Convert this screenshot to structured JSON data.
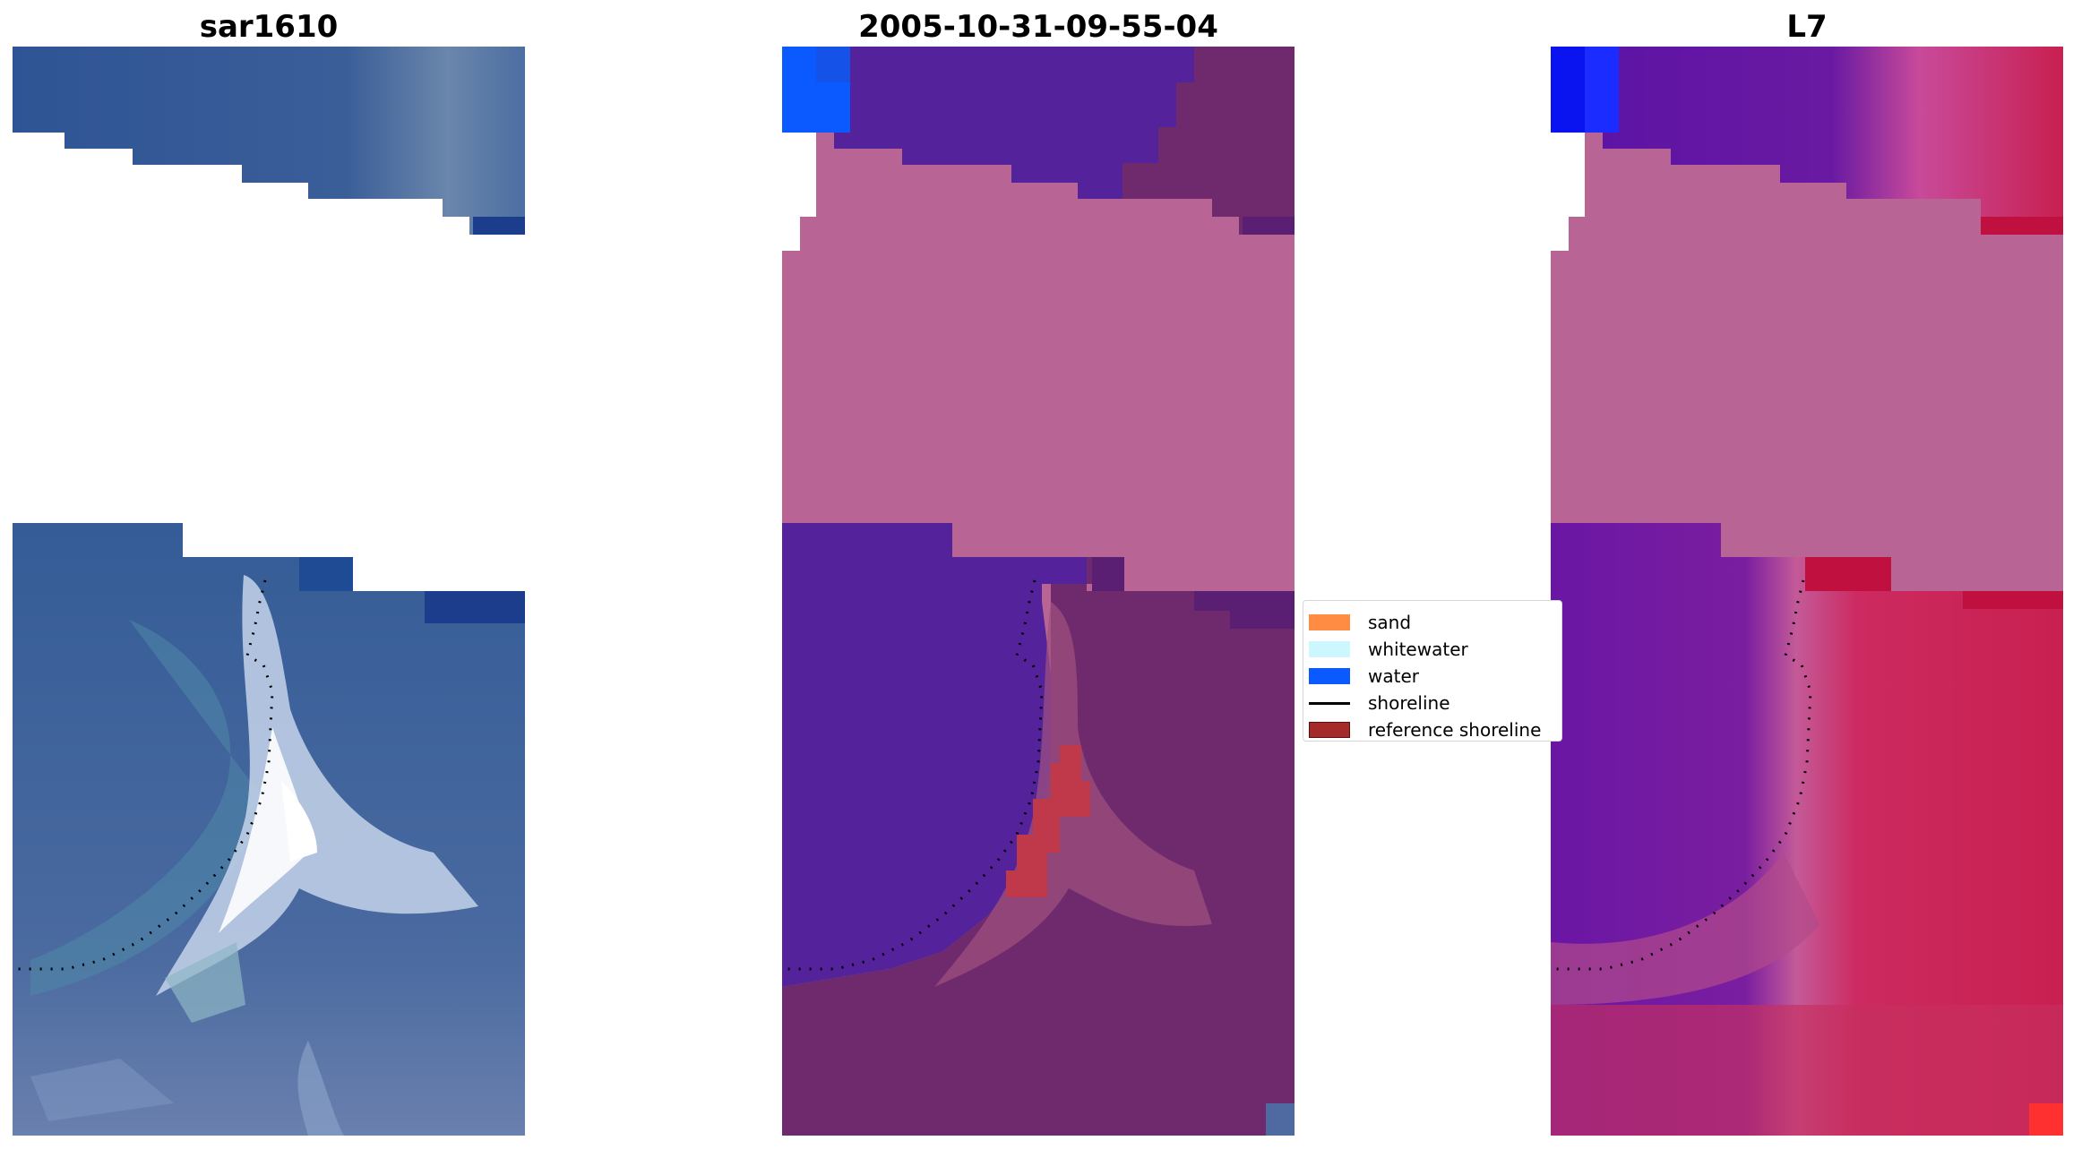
{
  "panels": [
    {
      "title": "sar1610",
      "type": "rgb-image"
    },
    {
      "title": "2005-10-31-09-55-04",
      "type": "classified-overlay"
    },
    {
      "title": "L7",
      "type": "index-image"
    }
  ],
  "legend": {
    "items": [
      {
        "label": "sand",
        "color": "#ff8c42",
        "kind": "patch"
      },
      {
        "label": "whitewater",
        "color": "#ccf7ff",
        "kind": "patch"
      },
      {
        "label": "water",
        "color": "#0a5aff",
        "kind": "patch"
      },
      {
        "label": "shoreline",
        "color": "#000000",
        "kind": "line"
      },
      {
        "label": "reference shoreline",
        "color": "#a52a2a",
        "kind": "patch"
      }
    ]
  },
  "colors": {
    "nodata": "#b86494",
    "water_class": "#54229a",
    "land_class": "#6b2666",
    "rgb_sea": "#3d5f9a",
    "rgb_beach": "#dde7f4",
    "index_water": "#6a14a6",
    "index_land": "#c8245e"
  }
}
